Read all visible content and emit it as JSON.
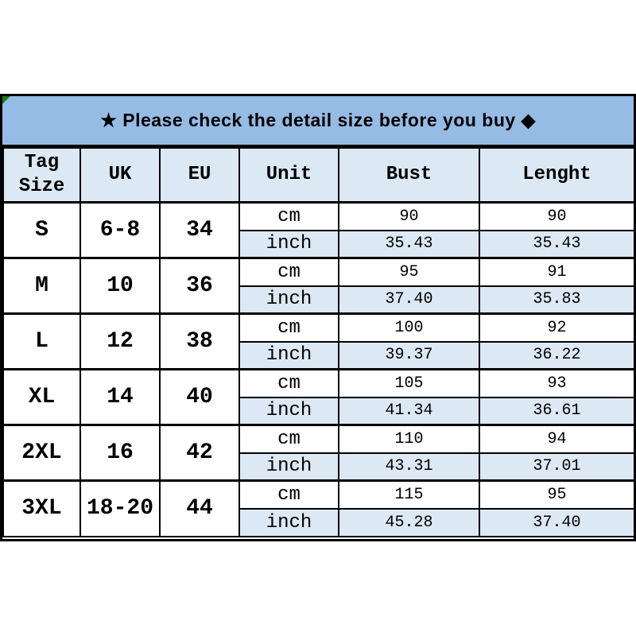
{
  "page": {
    "background": "#ffffff"
  },
  "banner": {
    "text": "★ Please check the detail size before you buy ◆",
    "star_icon": "★",
    "diamond_icon": "◆",
    "bg_color": "#96BCE5",
    "text_color": "#000000",
    "corner_marker_color": "#1c7a1c"
  },
  "table": {
    "header_bg_color": "#DCE8F4",
    "alt_row_bg_color": "#DCE8F4",
    "row_bg_color": "#ffffff",
    "border_color": "#000000"
  },
  "chart_data": {
    "type": "table",
    "title": "★ Please check the detail size before you buy ◆",
    "columns": [
      "Tag Size",
      "UK",
      "EU",
      "Unit",
      "Bust",
      "Lenght"
    ],
    "unit_labels": [
      "cm",
      "inch"
    ],
    "rows": [
      {
        "tag_size": "S",
        "uk": "6-8",
        "eu": "34",
        "cm": {
          "bust": "90",
          "length": "90"
        },
        "inch": {
          "bust": "35.43",
          "length": "35.43"
        }
      },
      {
        "tag_size": "M",
        "uk": "10",
        "eu": "36",
        "cm": {
          "bust": "95",
          "length": "91"
        },
        "inch": {
          "bust": "37.40",
          "length": "35.83"
        }
      },
      {
        "tag_size": "L",
        "uk": "12",
        "eu": "38",
        "cm": {
          "bust": "100",
          "length": "92"
        },
        "inch": {
          "bust": "39.37",
          "length": "36.22"
        }
      },
      {
        "tag_size": "XL",
        "uk": "14",
        "eu": "40",
        "cm": {
          "bust": "105",
          "length": "93"
        },
        "inch": {
          "bust": "41.34",
          "length": "36.61"
        }
      },
      {
        "tag_size": "2XL",
        "uk": "16",
        "eu": "42",
        "cm": {
          "bust": "110",
          "length": "94"
        },
        "inch": {
          "bust": "43.31",
          "length": "37.01"
        }
      },
      {
        "tag_size": "3XL",
        "uk": "18-20",
        "eu": "44",
        "cm": {
          "bust": "115",
          "length": "95"
        },
        "inch": {
          "bust": "45.28",
          "length": "37.40"
        }
      }
    ]
  }
}
